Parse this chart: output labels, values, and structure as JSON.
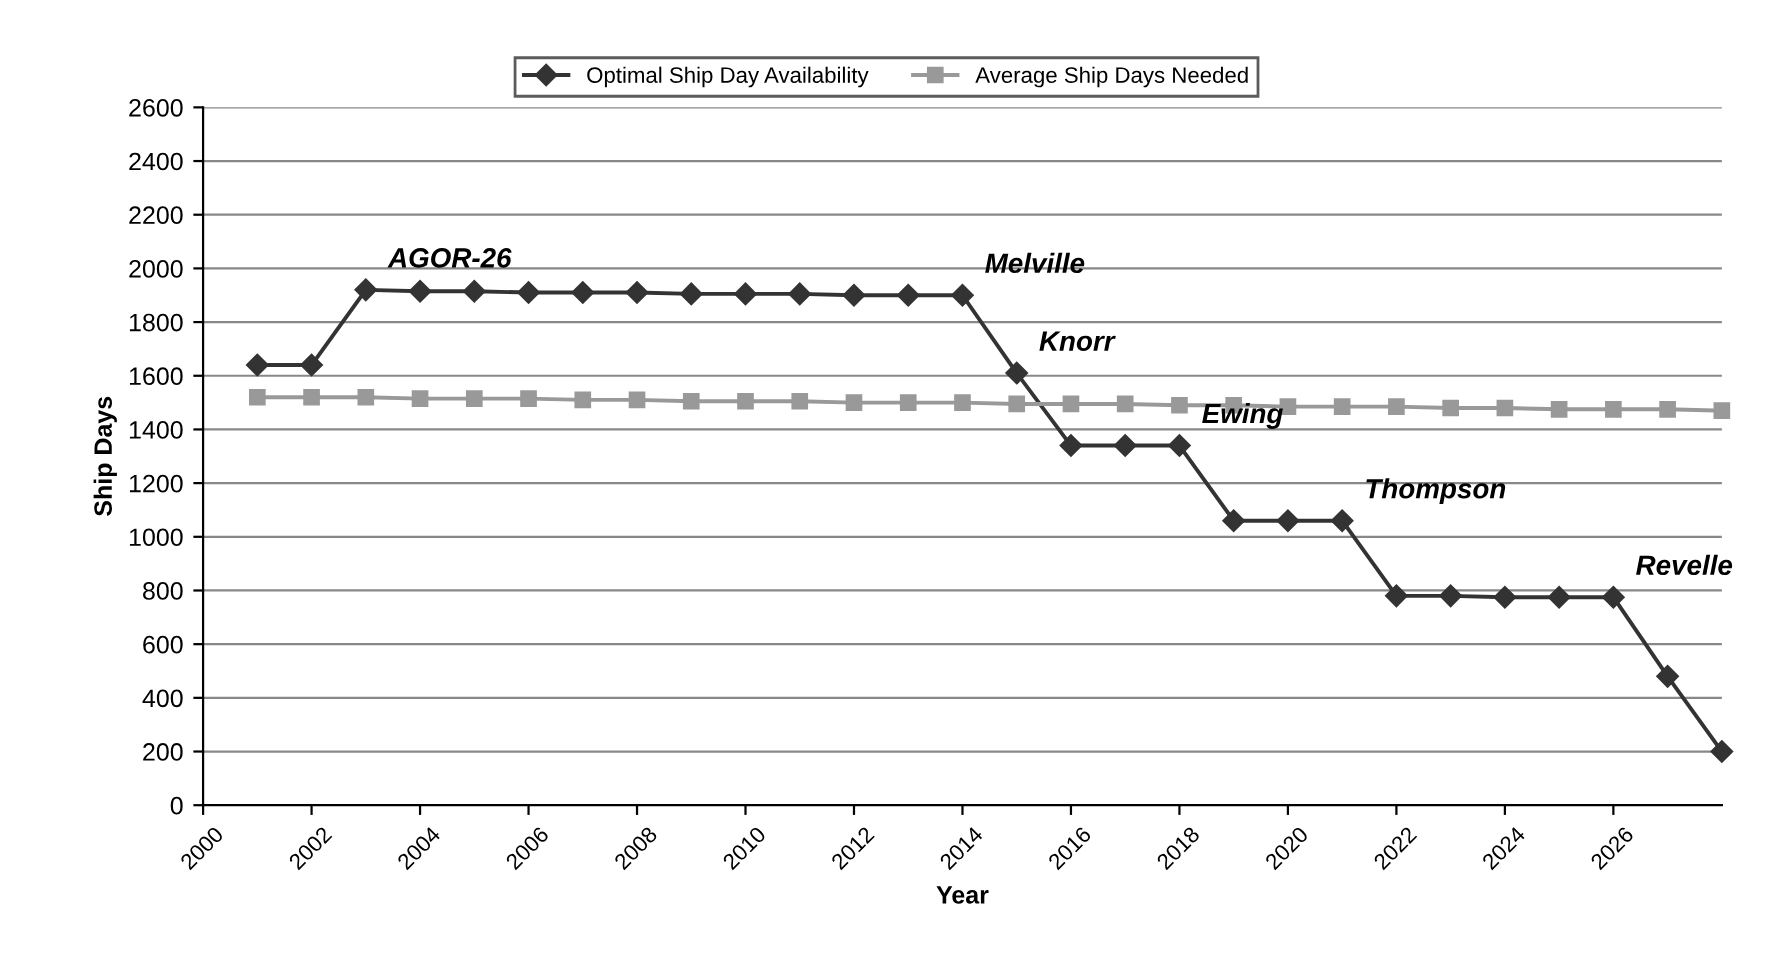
{
  "chart_data": {
    "type": "line",
    "xlabel": "Year",
    "ylabel": "Ship Days",
    "x": [
      2001,
      2002,
      2003,
      2004,
      2005,
      2006,
      2007,
      2008,
      2009,
      2010,
      2011,
      2012,
      2013,
      2014,
      2015,
      2016,
      2017,
      2018,
      2019,
      2020,
      2021,
      2022,
      2023,
      2024,
      2025,
      2026,
      2027,
      2028
    ],
    "series": [
      {
        "name": "Optimal Ship Day Availability",
        "color": "#333333",
        "marker": "diamond",
        "values": [
          1640,
          1640,
          1920,
          1915,
          1915,
          1910,
          1910,
          1910,
          1905,
          1905,
          1905,
          1900,
          1900,
          1900,
          1610,
          1340,
          1340,
          1340,
          1060,
          1060,
          1060,
          780,
          780,
          775,
          775,
          775,
          480,
          200
        ]
      },
      {
        "name": "Average Ship Days Needed",
        "color": "#999999",
        "marker": "square",
        "values": [
          1520,
          1520,
          1520,
          1515,
          1515,
          1515,
          1510,
          1510,
          1505,
          1505,
          1505,
          1500,
          1500,
          1500,
          1495,
          1495,
          1495,
          1490,
          1490,
          1485,
          1485,
          1485,
          1480,
          1480,
          1475,
          1475,
          1475,
          1470
        ]
      }
    ],
    "xlim": [
      2000,
      2028
    ],
    "xticks": [
      2000,
      2002,
      2004,
      2006,
      2008,
      2010,
      2012,
      2014,
      2016,
      2018,
      2020,
      2022,
      2024,
      2026
    ],
    "ylim": [
      0,
      2600
    ],
    "yticks": [
      0,
      200,
      400,
      600,
      800,
      1000,
      1200,
      1400,
      1600,
      1800,
      2000,
      2200,
      2400,
      2600
    ],
    "grid": "y",
    "legend": "top",
    "line_style": "solid",
    "annotations": [
      {
        "text": "AGOR-26",
        "x": 2003,
        "y": 1920
      },
      {
        "text": "Melville",
        "x": 2014,
        "y": 1900
      },
      {
        "text": "Knorr",
        "x": 2015,
        "y": 1610
      },
      {
        "text": "Ewing",
        "x": 2018,
        "y": 1340
      },
      {
        "text": "Thompson",
        "x": 2021,
        "y": 1060
      },
      {
        "text": "Revelle",
        "x": 2026,
        "y": 775
      }
    ]
  }
}
